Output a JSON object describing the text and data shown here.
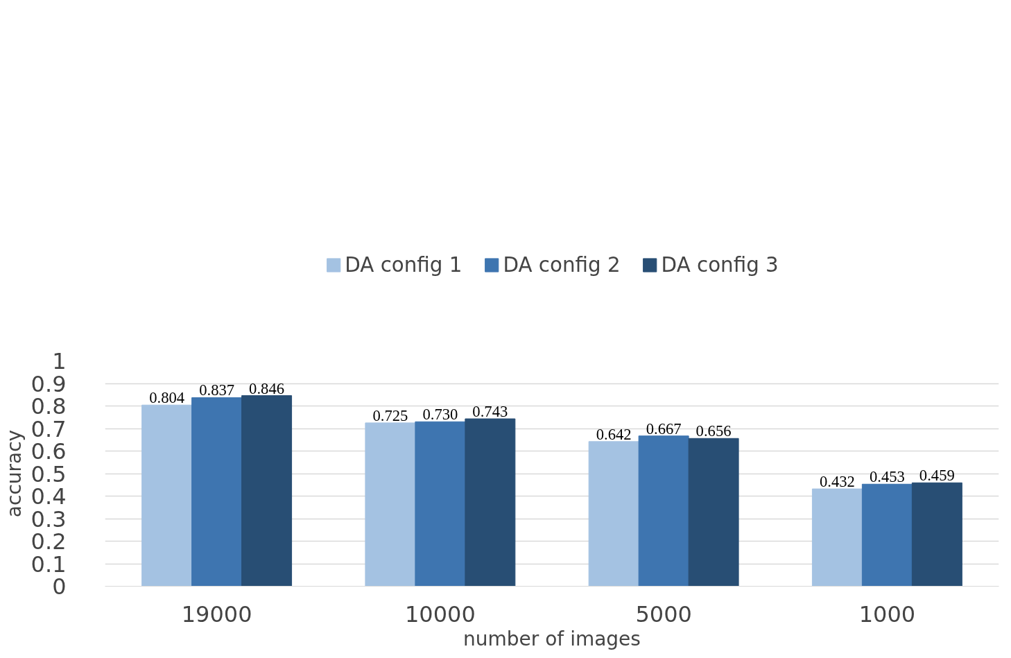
{
  "chart_data": {
    "type": "bar",
    "xlabel": "number of images",
    "ylabel": "accuracy",
    "categories": [
      "19000",
      "10000",
      "5000",
      "1000"
    ],
    "series": [
      {
        "name": "DA config 1",
        "color": "#a4c2e2",
        "values": [
          0.804,
          0.725,
          0.642,
          0.432
        ],
        "value_labels": [
          "0.804",
          "0.725",
          "0.642",
          "0.432"
        ]
      },
      {
        "name": "DA config 2",
        "color": "#3e75b0",
        "values": [
          0.837,
          0.73,
          0.667,
          0.453
        ],
        "value_labels": [
          "0.837",
          "0.730",
          "0.667",
          "0.453"
        ]
      },
      {
        "name": "DA config 3",
        "color": "#284e74",
        "values": [
          0.846,
          0.743,
          0.656,
          0.459
        ],
        "value_labels": [
          "0.846",
          "0.743",
          "0.656",
          "0.459"
        ]
      }
    ],
    "ylim": [
      0,
      1
    ],
    "yticks": [
      0,
      0.1,
      0.2,
      0.3,
      0.4,
      0.5,
      0.6,
      0.7,
      0.8,
      0.9,
      1
    ],
    "grid": "y",
    "legend": "top"
  }
}
